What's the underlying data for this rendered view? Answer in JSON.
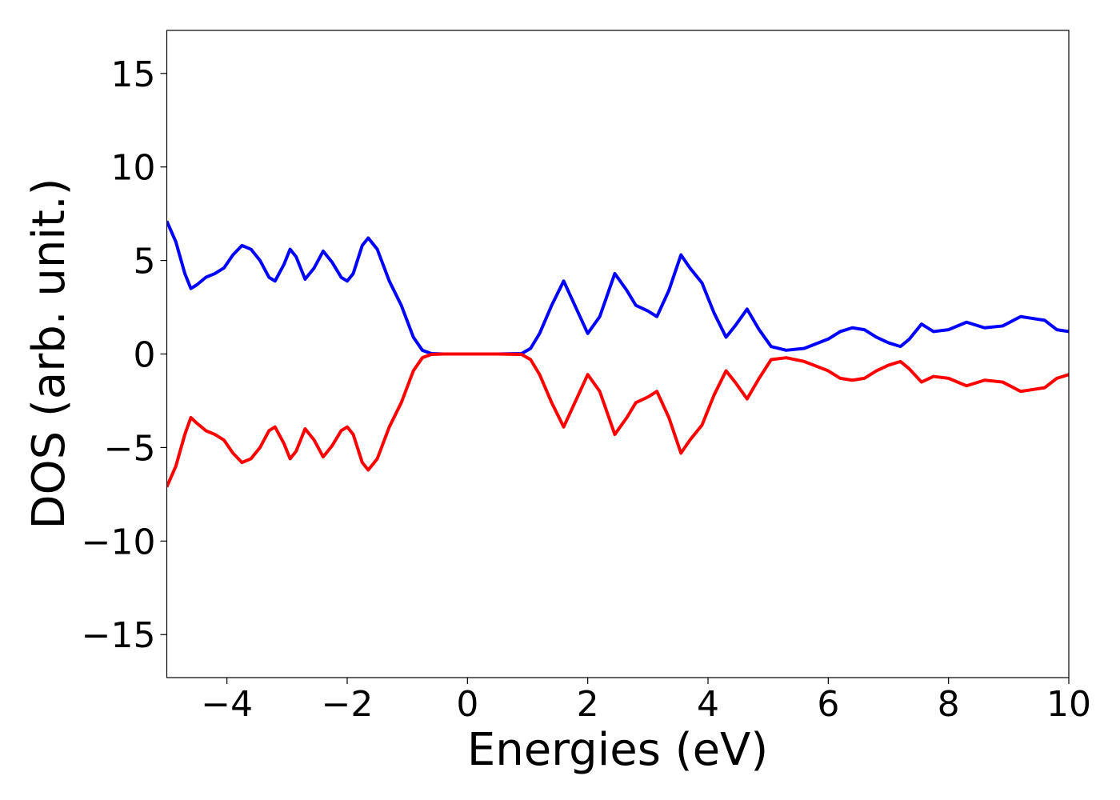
{
  "chart_data": {
    "type": "line",
    "xlabel": "Energies (eV)",
    "ylabel": "DOS (arb. unit.)",
    "xlim": [
      -5,
      10
    ],
    "ylim": [
      -17.3,
      17.3
    ],
    "xticks": [
      {
        "value": -4,
        "label": "−4"
      },
      {
        "value": -2,
        "label": "−2"
      },
      0,
      2,
      4,
      6,
      8,
      10
    ],
    "yticks": [
      {
        "value": -15,
        "label": "−15"
      },
      {
        "value": -10,
        "label": "−10"
      },
      {
        "value": -5,
        "label": "−5"
      },
      0,
      5,
      10,
      15
    ],
    "grid": false,
    "x": [
      -5,
      -4.85,
      -4.7,
      -4.6,
      -4.5,
      -4.35,
      -4.2,
      -4.05,
      -3.9,
      -3.75,
      -3.6,
      -3.45,
      -3.3,
      -3.2,
      -3.05,
      -2.95,
      -2.85,
      -2.7,
      -2.55,
      -2.4,
      -2.25,
      -2.1,
      -2.0,
      -1.9,
      -1.75,
      -1.65,
      -1.5,
      -1.3,
      -1.1,
      -0.9,
      -0.75,
      -0.6,
      -0.4,
      0,
      0.5,
      0.9,
      1.05,
      1.2,
      1.4,
      1.6,
      1.8,
      2.0,
      2.2,
      2.45,
      2.65,
      2.8,
      3.0,
      3.15,
      3.35,
      3.55,
      3.7,
      3.9,
      4.1,
      4.3,
      4.45,
      4.65,
      4.85,
      5.05,
      5.3,
      5.6,
      6.0,
      6.2,
      6.4,
      6.6,
      6.8,
      7.0,
      7.2,
      7.35,
      7.55,
      7.75,
      8.0,
      8.3,
      8.6,
      8.9,
      9.2,
      9.4,
      9.6,
      9.8,
      10
    ],
    "series": [
      {
        "color": "#0000ff",
        "values": [
          7.1,
          6.0,
          4.3,
          3.5,
          3.7,
          4.1,
          4.3,
          4.6,
          5.3,
          5.8,
          5.6,
          5.0,
          4.1,
          3.9,
          4.8,
          5.6,
          5.2,
          4.0,
          4.6,
          5.5,
          4.9,
          4.1,
          3.9,
          4.3,
          5.8,
          6.2,
          5.6,
          3.9,
          2.6,
          0.9,
          0.2,
          0.02,
          0,
          0,
          0,
          0.02,
          0.3,
          1.1,
          2.6,
          3.9,
          2.5,
          1.1,
          2.0,
          4.3,
          3.4,
          2.6,
          2.3,
          2.0,
          3.4,
          5.3,
          4.6,
          3.8,
          2.2,
          0.9,
          1.5,
          2.4,
          1.3,
          0.4,
          0.2,
          0.3,
          0.8,
          1.2,
          1.4,
          1.3,
          0.9,
          0.6,
          0.4,
          0.8,
          1.6,
          1.2,
          1.3,
          1.7,
          1.4,
          1.5,
          2.0,
          1.9,
          1.8,
          1.3,
          1.2
        ]
      },
      {
        "color": "#ff0000",
        "values": [
          -7.1,
          -6.0,
          -4.3,
          -3.4,
          -3.7,
          -4.1,
          -4.3,
          -4.6,
          -5.3,
          -5.8,
          -5.6,
          -5.0,
          -4.1,
          -3.9,
          -4.8,
          -5.6,
          -5.2,
          -4.0,
          -4.6,
          -5.5,
          -4.9,
          -4.1,
          -3.9,
          -4.3,
          -5.8,
          -6.2,
          -5.6,
          -3.9,
          -2.6,
          -0.9,
          -0.2,
          -0.02,
          0,
          0,
          0,
          -0.02,
          -0.3,
          -1.1,
          -2.6,
          -3.9,
          -2.5,
          -1.1,
          -2.0,
          -4.3,
          -3.4,
          -2.6,
          -2.3,
          -2.0,
          -3.4,
          -5.3,
          -4.6,
          -3.8,
          -2.2,
          -0.9,
          -1.5,
          -2.4,
          -1.3,
          -0.3,
          -0.2,
          -0.4,
          -0.9,
          -1.3,
          -1.4,
          -1.3,
          -0.9,
          -0.6,
          -0.4,
          -0.8,
          -1.5,
          -1.2,
          -1.3,
          -1.7,
          -1.4,
          -1.5,
          -2.0,
          -1.9,
          -1.8,
          -1.3,
          -1.1
        ]
      }
    ]
  }
}
